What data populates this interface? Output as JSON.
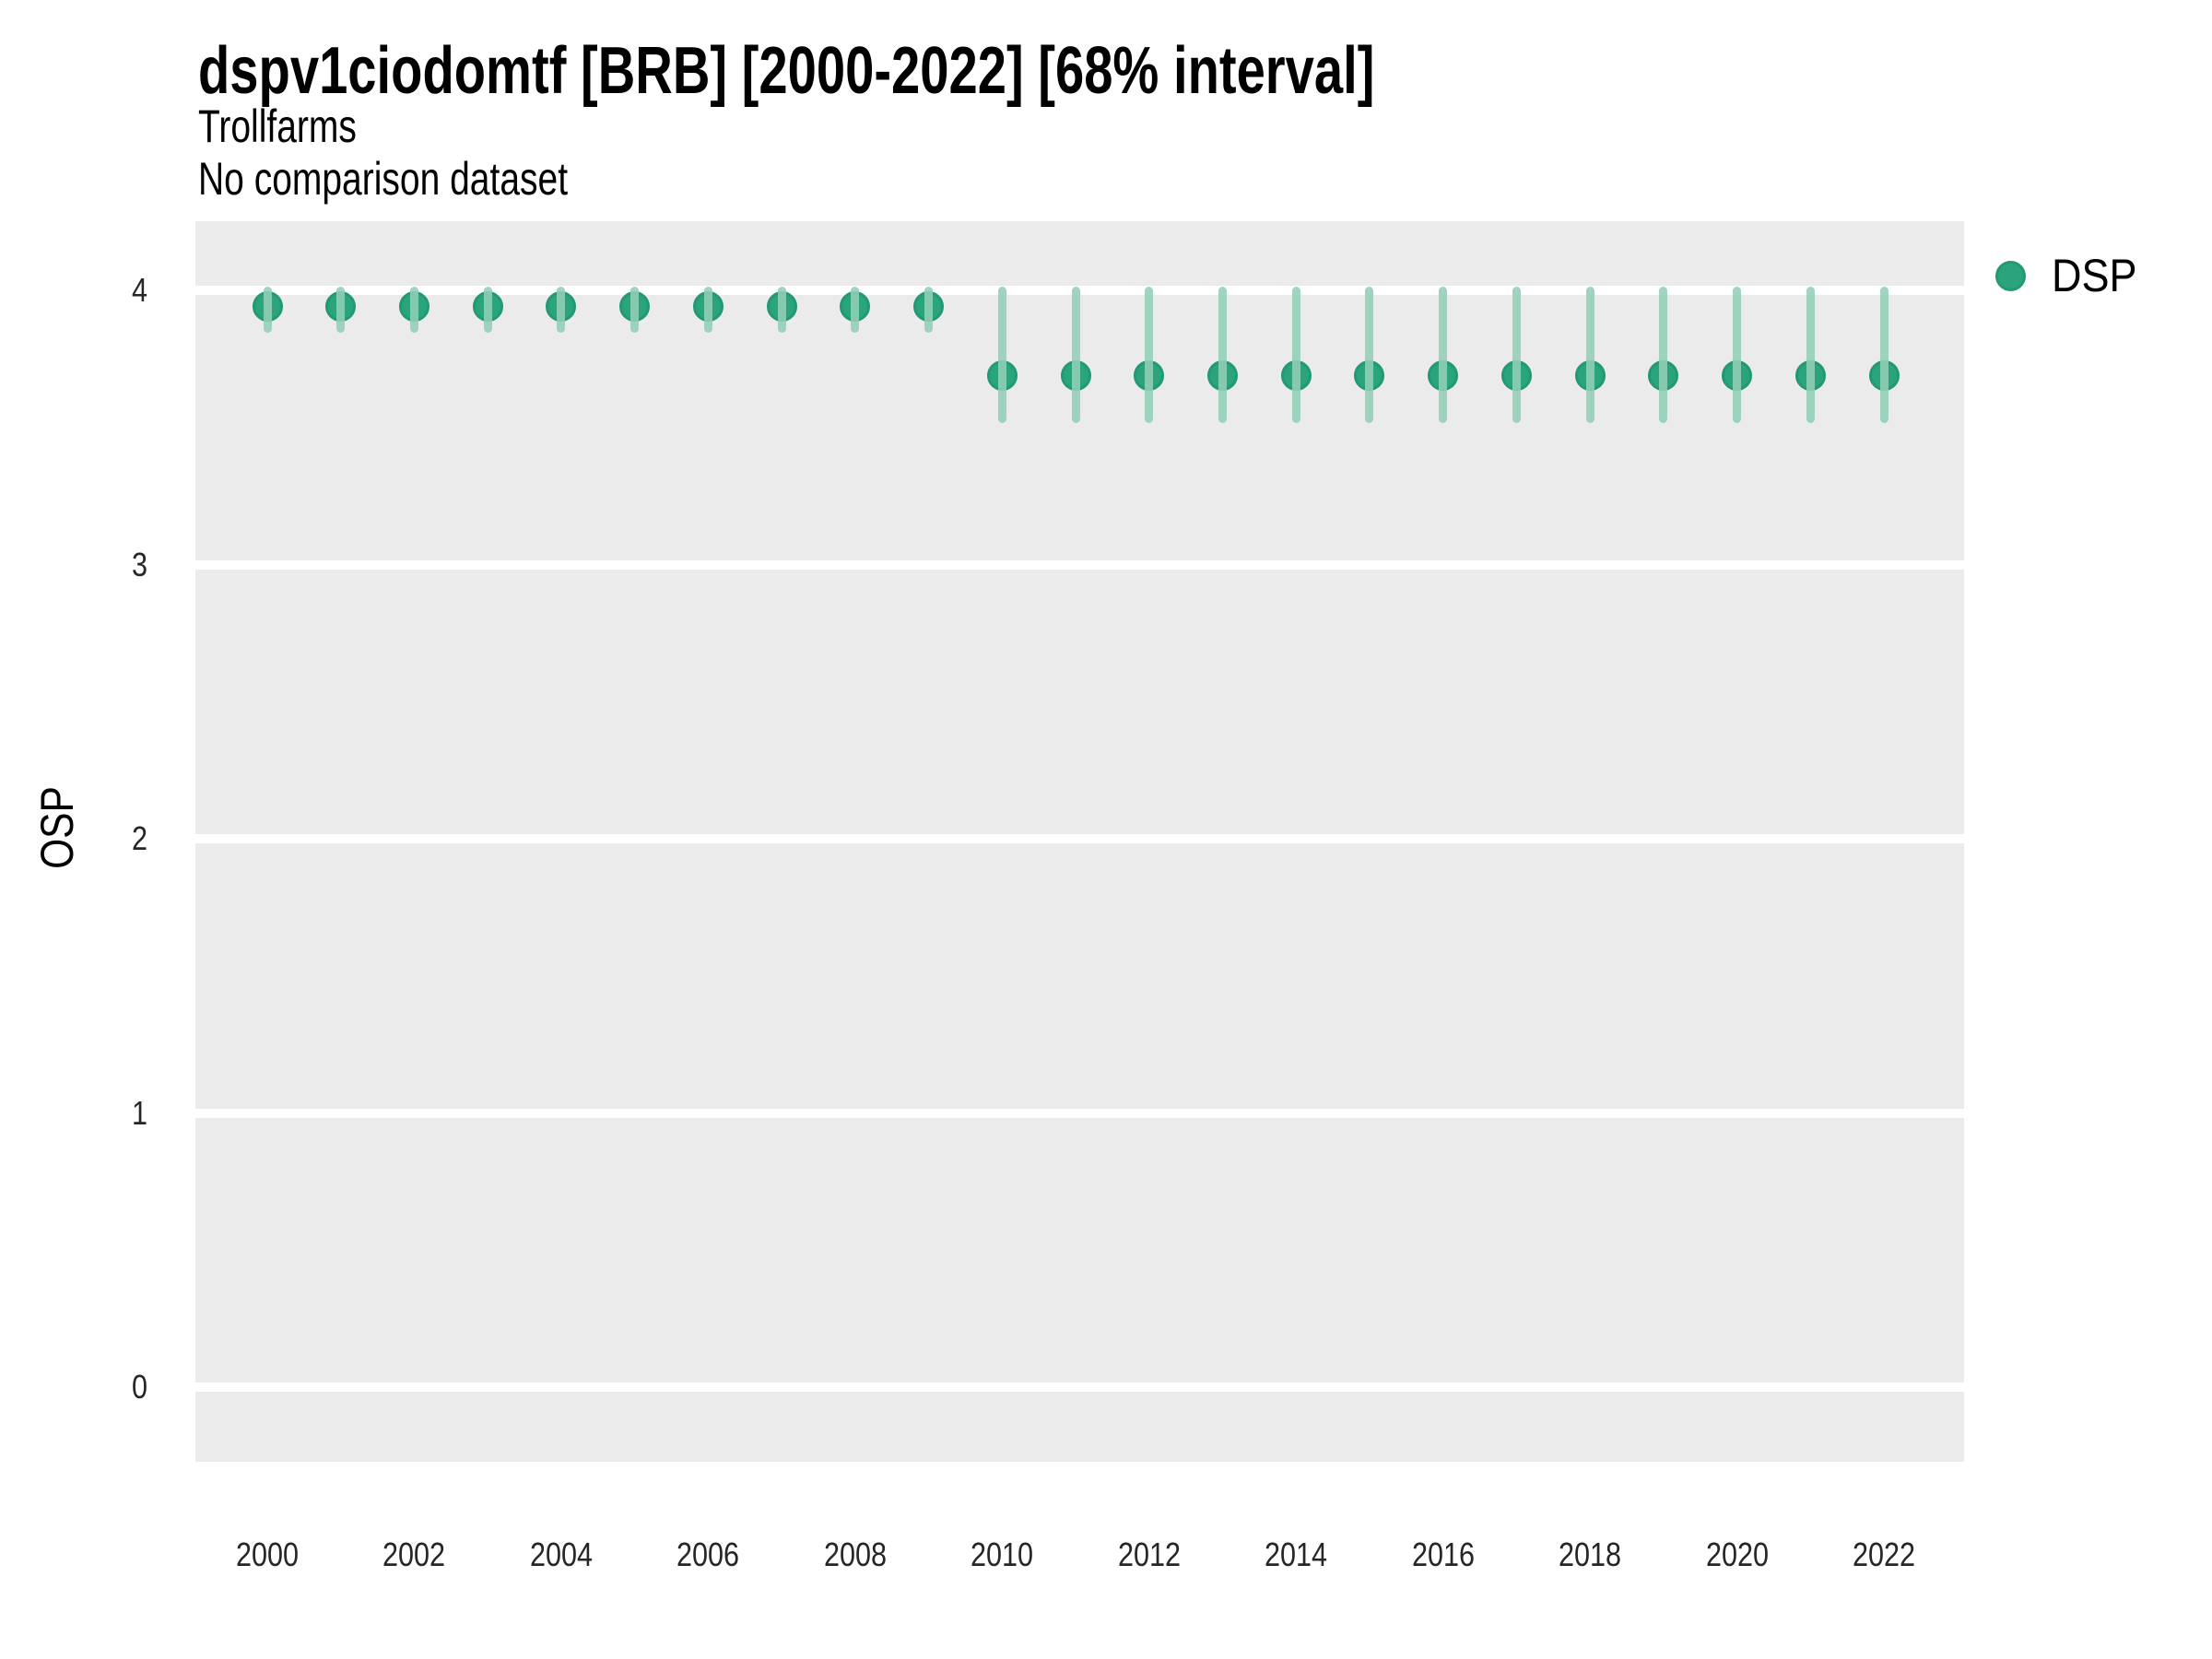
{
  "page": {
    "background": "#FFFFFF"
  },
  "header": {
    "title": "dspv1ciodomtf [BRB] [2000-2022] [68% interval]",
    "subtitle_line1": "Trollfarms",
    "subtitle_line2": "No comparison dataset"
  },
  "legend": {
    "label": "DSP",
    "swatch_color": "#2BA37D",
    "position": "right"
  },
  "chart_data": {
    "type": "scatter",
    "variant": "pointrange",
    "title": "dspv1ciodomtf [BRB] [2000-2022] [68% interval]",
    "subtitle": [
      "Trollfarms",
      "No comparison dataset"
    ],
    "interval": "68%",
    "xlabel": "",
    "ylabel": "OSP",
    "xticks": [
      2000,
      2002,
      2004,
      2006,
      2008,
      2010,
      2012,
      2014,
      2016,
      2018,
      2020,
      2022
    ],
    "yticks": [
      0,
      1,
      2,
      3,
      4
    ],
    "ylim": [
      -0.27,
      4.26
    ],
    "grid": "horizontal-major-only",
    "legend_position": "right",
    "colors": {
      "point": "#2BA37D",
      "point_border": "#219973",
      "interval_bar": "#92CEB6",
      "panel_background": "#EBEBEB",
      "gridline": "#FFFFFF",
      "text": "#000000",
      "tick_text": "#262626"
    },
    "series": [
      {
        "name": "DSP",
        "points": [
          {
            "x": 2000,
            "y": 3.94,
            "lo": 3.86,
            "hi": 4.0
          },
          {
            "x": 2001,
            "y": 3.94,
            "lo": 3.86,
            "hi": 4.0
          },
          {
            "x": 2002,
            "y": 3.94,
            "lo": 3.86,
            "hi": 4.0
          },
          {
            "x": 2003,
            "y": 3.94,
            "lo": 3.86,
            "hi": 4.0
          },
          {
            "x": 2004,
            "y": 3.94,
            "lo": 3.86,
            "hi": 4.0
          },
          {
            "x": 2005,
            "y": 3.94,
            "lo": 3.86,
            "hi": 4.0
          },
          {
            "x": 2006,
            "y": 3.94,
            "lo": 3.86,
            "hi": 4.0
          },
          {
            "x": 2007,
            "y": 3.94,
            "lo": 3.86,
            "hi": 4.0
          },
          {
            "x": 2008,
            "y": 3.94,
            "lo": 3.86,
            "hi": 4.0
          },
          {
            "x": 2009,
            "y": 3.94,
            "lo": 3.86,
            "hi": 4.0
          },
          {
            "x": 2010,
            "y": 3.69,
            "lo": 3.53,
            "hi": 4.0
          },
          {
            "x": 2011,
            "y": 3.69,
            "lo": 3.53,
            "hi": 4.0
          },
          {
            "x": 2012,
            "y": 3.69,
            "lo": 3.53,
            "hi": 4.0
          },
          {
            "x": 2013,
            "y": 3.69,
            "lo": 3.53,
            "hi": 4.0
          },
          {
            "x": 2014,
            "y": 3.69,
            "lo": 3.53,
            "hi": 4.0
          },
          {
            "x": 2015,
            "y": 3.69,
            "lo": 3.53,
            "hi": 4.0
          },
          {
            "x": 2016,
            "y": 3.69,
            "lo": 3.53,
            "hi": 4.0
          },
          {
            "x": 2017,
            "y": 3.69,
            "lo": 3.53,
            "hi": 4.0
          },
          {
            "x": 2018,
            "y": 3.69,
            "lo": 3.53,
            "hi": 4.0
          },
          {
            "x": 2019,
            "y": 3.69,
            "lo": 3.53,
            "hi": 4.0
          },
          {
            "x": 2020,
            "y": 3.69,
            "lo": 3.53,
            "hi": 4.0
          },
          {
            "x": 2021,
            "y": 3.69,
            "lo": 3.53,
            "hi": 4.0
          },
          {
            "x": 2022,
            "y": 3.69,
            "lo": 3.53,
            "hi": 4.0
          }
        ]
      }
    ]
  }
}
